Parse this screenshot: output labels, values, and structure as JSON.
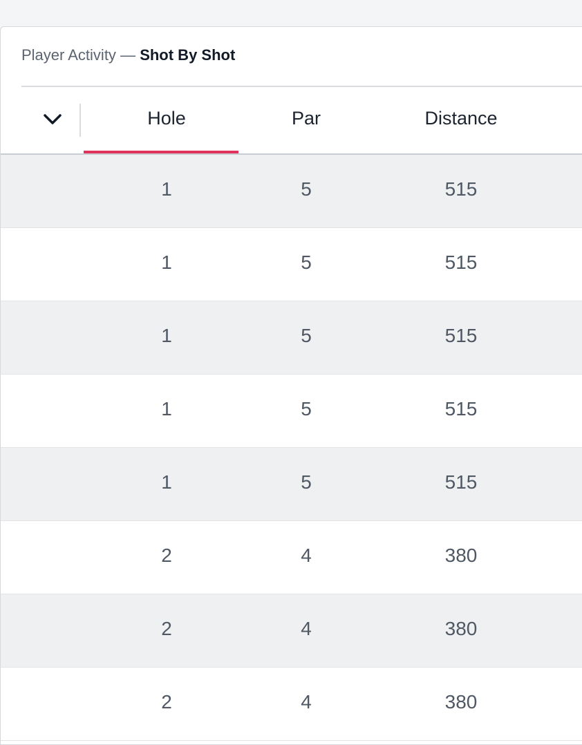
{
  "breadcrumb": {
    "section": "Player Activity",
    "separator": "—",
    "title": "Shot By Shot"
  },
  "table": {
    "columns": [
      "Hole",
      "Par",
      "Distance"
    ],
    "rows": [
      [
        "1",
        "5",
        "515"
      ],
      [
        "1",
        "5",
        "515"
      ],
      [
        "1",
        "5",
        "515"
      ],
      [
        "1",
        "5",
        "515"
      ],
      [
        "1",
        "5",
        "515"
      ],
      [
        "2",
        "4",
        "380"
      ],
      [
        "2",
        "4",
        "380"
      ],
      [
        "2",
        "4",
        "380"
      ]
    ]
  }
}
